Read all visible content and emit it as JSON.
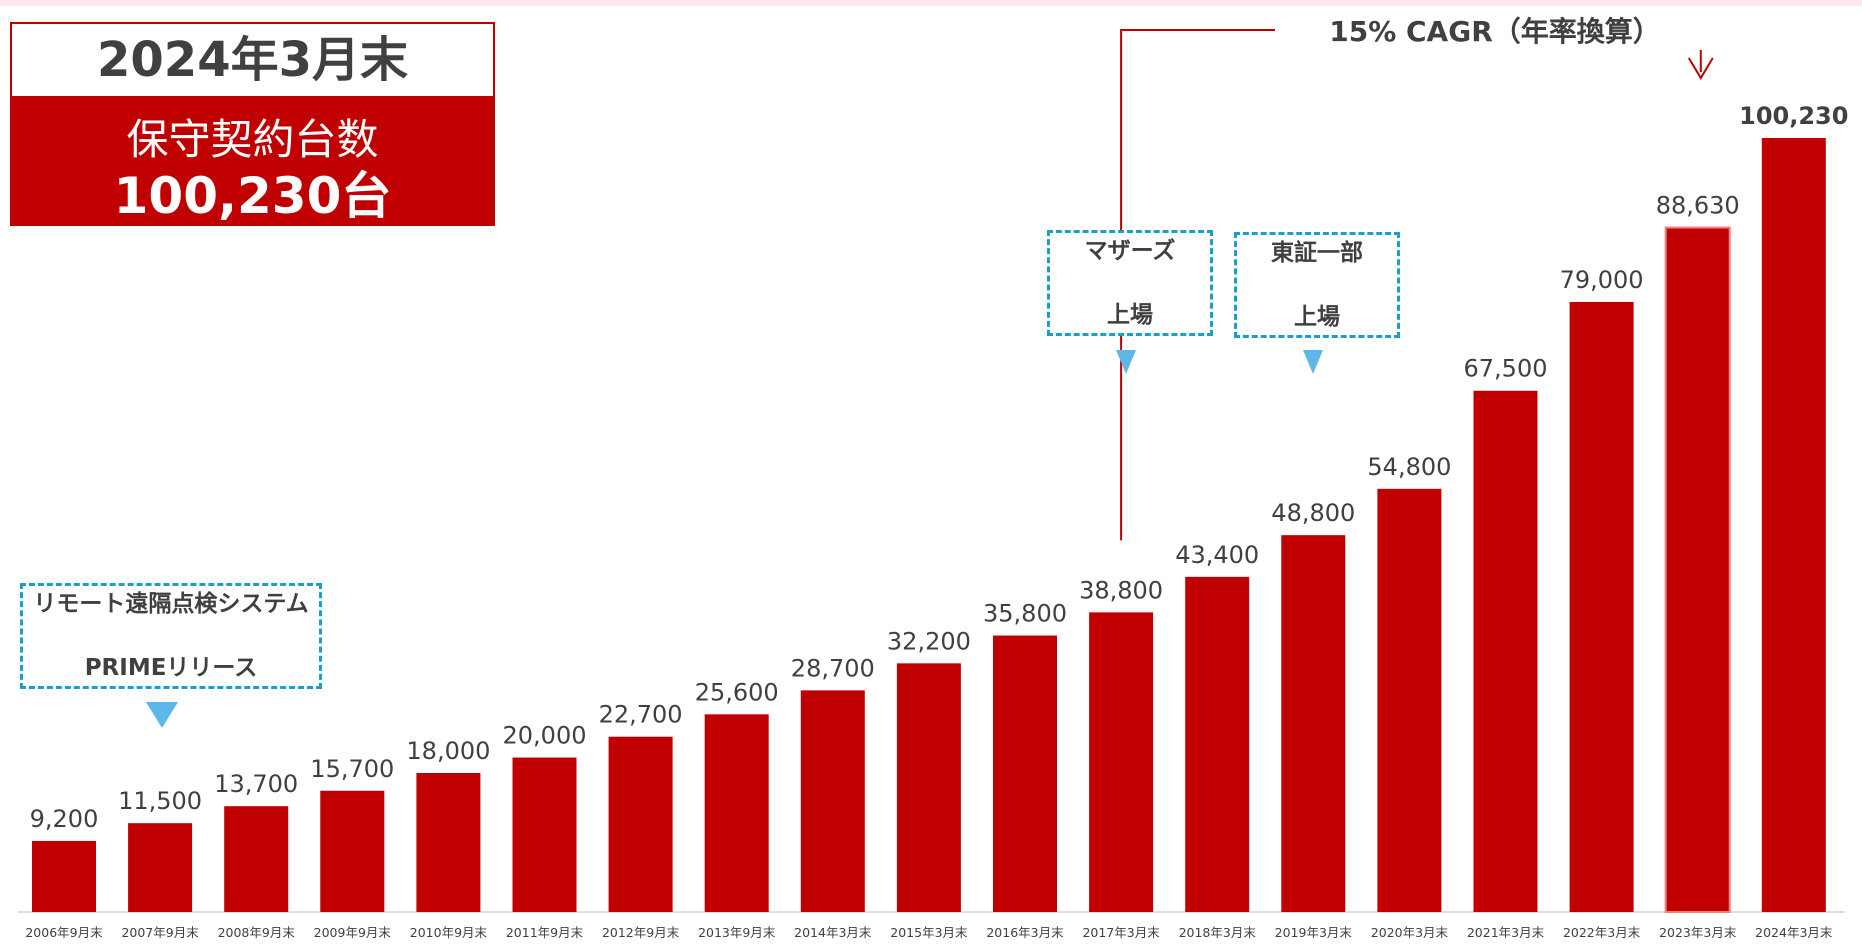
{
  "summary": {
    "date": "2024年3月末",
    "label": "保守契約台数",
    "value": "100,230台"
  },
  "annotations": {
    "prime_release": [
      "リモート遠隔点検システム",
      "PRIMEリリース"
    ],
    "mothers_listing": [
      "マザーズ",
      "上場"
    ],
    "tse_listing": [
      "東証一部",
      "上場"
    ],
    "cagr": "15% CAGR（年率換算）"
  },
  "colors": {
    "bar": "#c00000",
    "bar_highlight_outline": "#f08080",
    "callout_border": "#1aa0c8",
    "marker": "#5eb7e8",
    "text": "#404040",
    "axis": "#bfbfbf"
  },
  "chart_data": {
    "type": "bar",
    "categories": [
      "2006年9月末",
      "2007年9月末",
      "2008年9月末",
      "2009年9月末",
      "2010年9月末",
      "2011年9月末",
      "2012年9月末",
      "2013年9月末",
      "2014年3月末",
      "2015年3月末",
      "2016年3月末",
      "2017年3月末",
      "2018年3月末",
      "2019年3月末",
      "2020年3月末",
      "2021年3月末",
      "2022年3月末",
      "2023年3月末",
      "2024年3月末"
    ],
    "values": [
      9200,
      11500,
      13700,
      15700,
      18000,
      20000,
      22700,
      25600,
      28700,
      32200,
      35800,
      38800,
      43400,
      48800,
      54800,
      67500,
      79000,
      88630,
      100230
    ],
    "data_labels": [
      "9,200",
      "11,500",
      "13,700",
      "15,700",
      "18,000",
      "20,000",
      "22,700",
      "25,600",
      "28,700",
      "32,200",
      "35,800",
      "38,800",
      "43,400",
      "48,800",
      "54,800",
      "67,500",
      "79,000",
      "88,630",
      "100,230"
    ],
    "title": "",
    "xlabel": "",
    "ylabel": "",
    "ylim": [
      0,
      100230
    ],
    "grid": false,
    "legend": "none"
  }
}
